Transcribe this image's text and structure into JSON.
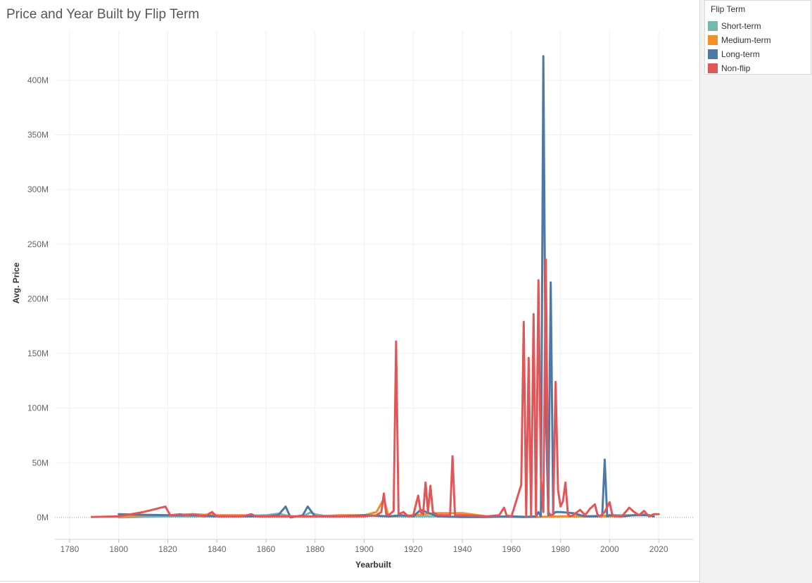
{
  "title": "Price and Year Built by Flip Term",
  "legend": {
    "title": "Flip Term",
    "placement": "top-right"
  },
  "colors": {
    "Short-term": "#76b7b2",
    "Medium-term": "#f28e2b",
    "Long-term": "#4e79a7",
    "Non-flip": "#e15759"
  },
  "chart_data": {
    "type": "line",
    "title": "Price and Year Built by Flip Term",
    "xlabel": "Yearbuilt",
    "ylabel": "Avg. Price",
    "xlim": [
      1774,
      2034
    ],
    "ylim": [
      -20000000,
      445000000
    ],
    "x_ticks": [
      1780,
      1800,
      1820,
      1840,
      1860,
      1880,
      1900,
      1920,
      1940,
      1960,
      1980,
      2000,
      2020
    ],
    "y_ticks": [
      0,
      50000000,
      100000000,
      150000000,
      200000000,
      250000000,
      300000000,
      350000000,
      400000000
    ],
    "y_tick_labels": [
      "0M",
      "50M",
      "100M",
      "150M",
      "200M",
      "250M",
      "300M",
      "350M",
      "400M"
    ],
    "grid": true,
    "legend_placement": "top-right",
    "series": [
      {
        "name": "Short-term",
        "x": [
          1800,
          1820,
          1840,
          1860,
          1865,
          1870,
          1875,
          1878,
          1880,
          1885,
          1890,
          1900,
          1910,
          1920,
          1930,
          1940,
          1950,
          1960,
          1970,
          1980,
          1990,
          2000,
          2010,
          2015,
          2018
        ],
        "y": [
          0,
          1000000,
          1000000,
          2000000,
          3500000,
          1000000,
          1000000,
          4500000,
          3000000,
          1000000,
          1000000,
          2000000,
          1000000,
          1000000,
          1000000,
          500000,
          500000,
          1000000,
          500000,
          1000000,
          1000000,
          2000000,
          2000000,
          3000000,
          1000000
        ]
      },
      {
        "name": "Medium-term",
        "x": [
          1800,
          1820,
          1830,
          1840,
          1850,
          1860,
          1870,
          1880,
          1890,
          1900,
          1905,
          1908,
          1910,
          1920,
          1930,
          1940,
          1950,
          1960,
          1970,
          1980,
          1990,
          2000,
          2010
        ],
        "y": [
          1000000,
          2000000,
          3000000,
          2000000,
          2000000,
          1000000,
          1000000,
          1000000,
          2000000,
          2000000,
          5000000,
          17000000,
          1000000,
          2000000,
          4000000,
          4000000,
          1000000,
          500000,
          500000,
          1000000,
          1000000,
          1000000,
          2000000
        ]
      },
      {
        "name": "Long-term",
        "x": [
          1800,
          1810,
          1820,
          1830,
          1840,
          1850,
          1860,
          1865,
          1868,
          1870,
          1875,
          1877,
          1880,
          1890,
          1900,
          1910,
          1915,
          1920,
          1923,
          1930,
          1940,
          1950,
          1960,
          1965,
          1970,
          1971,
          1972,
          1973,
          1974,
          1975,
          1976,
          1977,
          1978,
          1980,
          1985,
          1990,
          1995,
          1997,
          1998,
          1999,
          2000,
          2005,
          2010,
          2015,
          2018
        ],
        "y": [
          3000000,
          2500000,
          2000000,
          2000000,
          1000000,
          1000000,
          1000000,
          2000000,
          10000000,
          0,
          2000000,
          10000000,
          1000000,
          1000000,
          2000000,
          1000000,
          2000000,
          1000000,
          7000000,
          1000000,
          500000,
          500000,
          1000000,
          500000,
          1000000,
          5000000,
          1000000,
          422000000,
          100000000,
          2000000,
          215000000,
          3000000,
          5000000,
          5000000,
          4000000,
          1000000,
          1000000,
          2000000,
          53000000,
          1000000,
          2000000,
          1000000,
          2000000,
          2000000,
          1000000
        ]
      },
      {
        "name": "Non-flip",
        "x": [
          1789,
          1800,
          1810,
          1812,
          1819,
          1821,
          1825,
          1828,
          1830,
          1835,
          1838,
          1840,
          1850,
          1854,
          1856,
          1860,
          1870,
          1880,
          1890,
          1900,
          1905,
          1907,
          1908,
          1909,
          1910,
          1912,
          1913,
          1914,
          1916,
          1918,
          1920,
          1922,
          1923,
          1924,
          1925,
          1926,
          1927,
          1928,
          1930,
          1935,
          1936,
          1937,
          1940,
          1950,
          1955,
          1957,
          1958,
          1960,
          1964,
          1965,
          1966,
          1967,
          1968,
          1969,
          1970,
          1971,
          1972,
          1973,
          1974,
          1975,
          1976,
          1977,
          1978,
          1979,
          1980,
          1981,
          1982,
          1983,
          1984,
          1985,
          1988,
          1990,
          1992,
          1994,
          1995,
          1996,
          1998,
          2000,
          2001,
          2002,
          2005,
          2008,
          2010,
          2012,
          2014,
          2016,
          2018,
          2020
        ],
        "y": [
          500000,
          1000000,
          5000000,
          6000000,
          10000000,
          2000000,
          3000000,
          2000000,
          3000000,
          1000000,
          5000000,
          1000000,
          1000000,
          3000000,
          1000000,
          1000000,
          1000000,
          1000000,
          1000000,
          1000000,
          2000000,
          5000000,
          22000000,
          3000000,
          2000000,
          6000000,
          161000000,
          3000000,
          5000000,
          1000000,
          2000000,
          20000000,
          5000000,
          3000000,
          32000000,
          5000000,
          29000000,
          5000000,
          2000000,
          2000000,
          56000000,
          2000000,
          2000000,
          1000000,
          2000000,
          9000000,
          2000000,
          1000000,
          30000000,
          179000000,
          1000000,
          146000000,
          1000000,
          186000000,
          1000000,
          217000000,
          37000000,
          5000000,
          236000000,
          5000000,
          2000000,
          3000000,
          124000000,
          25000000,
          10000000,
          15000000,
          32000000,
          3000000,
          1000000,
          2000000,
          7000000,
          2000000,
          8000000,
          12000000,
          3000000,
          1000000,
          5000000,
          14000000,
          3000000,
          1000000,
          1000000,
          9000000,
          5000000,
          2000000,
          6000000,
          1000000,
          3000000,
          3000000
        ]
      }
    ]
  }
}
